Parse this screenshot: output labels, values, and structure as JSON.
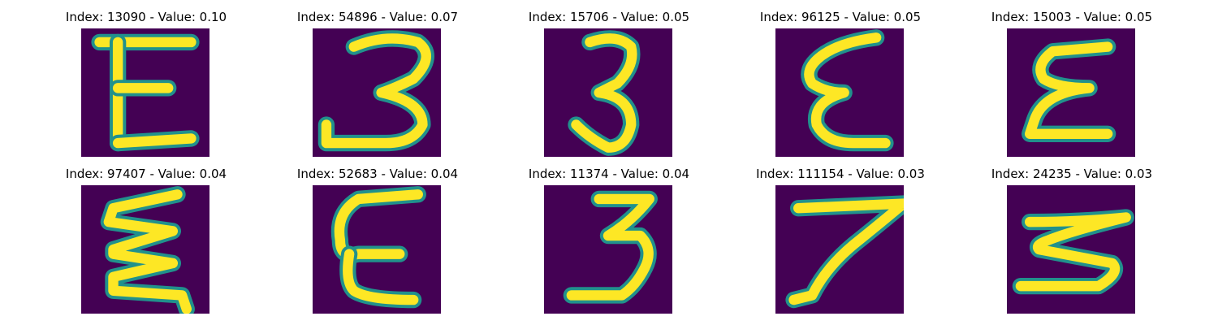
{
  "chart_data": {
    "type": "image_grid",
    "colormap": "viridis",
    "background_color": "#440154",
    "stroke_color": "#fde725",
    "edge_color": "#21918c",
    "panels": [
      {
        "title": "Index: 13090 - Value: 0.10",
        "index": 13090,
        "value": 0.1,
        "glyph": "E-sharp"
      },
      {
        "title": "Index: 54896 - Value: 0.07",
        "index": 54896,
        "value": 0.07,
        "glyph": "3-wide"
      },
      {
        "title": "Index: 15706 - Value: 0.05",
        "index": 15706,
        "value": 0.05,
        "glyph": "3-narrow"
      },
      {
        "title": "Index: 96125 - Value: 0.05",
        "index": 96125,
        "value": 0.05,
        "glyph": "epsilon"
      },
      {
        "title": "Index: 15003 - Value: 0.05",
        "index": 15003,
        "value": 0.05,
        "glyph": "epsilon-bold"
      },
      {
        "title": "Index: 97407 - Value: 0.04",
        "index": 97407,
        "value": 0.04,
        "glyph": "zigzag"
      },
      {
        "title": "Index: 52683 - Value: 0.04",
        "index": 52683,
        "value": 0.04,
        "glyph": "E-round"
      },
      {
        "title": "Index: 11374 - Value: 0.04",
        "index": 11374,
        "value": 0.04,
        "glyph": "3-flat"
      },
      {
        "title": "Index: 111154 - Value: 0.03",
        "index": 111154,
        "value": 0.03,
        "glyph": "7"
      },
      {
        "title": "Index: 24235 - Value: 0.03",
        "index": 24235,
        "value": 0.03,
        "glyph": "5-rotated"
      }
    ]
  }
}
